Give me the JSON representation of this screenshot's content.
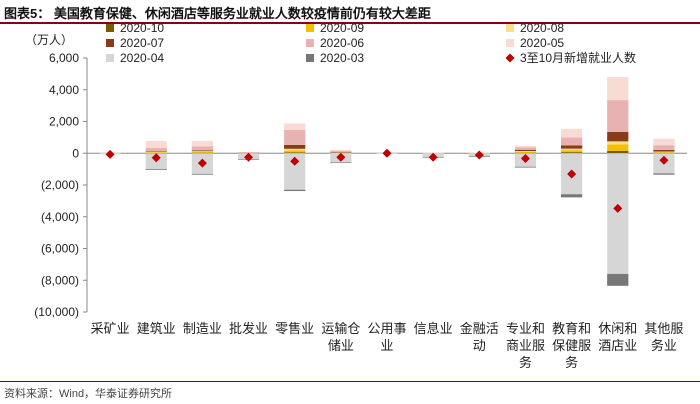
{
  "header": {
    "figure_title": "图表5：  美国教育保健、休闲酒店等服务业就业人数较疫情前仍有较大差距",
    "source": "资料来源：Wind，华泰证券研究所"
  },
  "chart_data": {
    "type": "bar",
    "stacked": true,
    "unit_label": "（万人）",
    "categories": [
      [
        "采矿业"
      ],
      [
        "建筑业"
      ],
      [
        "制造业"
      ],
      [
        "批发业"
      ],
      [
        "零售业"
      ],
      [
        "运输仓",
        "储业"
      ],
      [
        "公用事",
        "业"
      ],
      [
        "信息业"
      ],
      [
        "金融活",
        "动"
      ],
      [
        "专业和",
        "商业服",
        "务"
      ],
      [
        "教育和",
        "保健服",
        "务"
      ],
      [
        "休闲和",
        "酒店业"
      ],
      [
        "其他服",
        "务业"
      ]
    ],
    "ylim": [
      -10000,
      6000
    ],
    "yticks": [
      6000,
      4000,
      2000,
      0,
      -2000,
      -4000,
      -6000,
      -8000,
      -10000
    ],
    "ytick_labels": [
      "6,000",
      "4,000",
      "2,000",
      "0",
      "(2,000)",
      "(4,000)",
      "(6,000)",
      "(8,000)",
      "(10,000)"
    ],
    "legend_position": "top",
    "series": [
      {
        "name": "2020-10",
        "color": "#7a5a00",
        "values": [
          5,
          20,
          30,
          5,
          60,
          10,
          0,
          5,
          5,
          30,
          70,
          150,
          30
        ]
      },
      {
        "name": "2020-09",
        "color": "#f5c000",
        "values": [
          5,
          40,
          60,
          10,
          120,
          15,
          0,
          5,
          5,
          50,
          130,
          400,
          40
        ]
      },
      {
        "name": "2020-08",
        "color": "#fbe08a",
        "values": [
          5,
          30,
          40,
          10,
          100,
          15,
          0,
          5,
          5,
          60,
          90,
          200,
          40
        ]
      },
      {
        "name": "2020-07",
        "color": "#8b3a1a",
        "values": [
          0,
          40,
          50,
          10,
          250,
          20,
          0,
          5,
          5,
          80,
          200,
          600,
          100
        ]
      },
      {
        "name": "2020-06",
        "color": "#e8b2b2",
        "values": [
          5,
          200,
          250,
          30,
          950,
          80,
          5,
          10,
          10,
          150,
          500,
          2000,
          300
        ]
      },
      {
        "name": "2020-05",
        "color": "#f8dcd4",
        "values": [
          5,
          450,
          350,
          20,
          400,
          80,
          5,
          10,
          10,
          100,
          550,
          1450,
          400
        ]
      },
      {
        "name": "2020-04",
        "color": "#d6d6d6",
        "values": [
          -70,
          -1000,
          -1300,
          -380,
          -2300,
          -580,
          -10,
          -250,
          -200,
          -850,
          -2580,
          -7600,
          -1270
        ]
      },
      {
        "name": "2020-03",
        "color": "#777777",
        "values": [
          0,
          -50,
          -50,
          -20,
          -80,
          -20,
          0,
          -20,
          -20,
          -50,
          -200,
          -750,
          -80
        ]
      }
    ],
    "marker_series": {
      "name": "3至10月新增就业人数",
      "color": "#c00000",
      "values": [
        -70,
        -280,
        -620,
        -250,
        -500,
        -250,
        0,
        -250,
        -110,
        -330,
        -1310,
        -3470,
        -440
      ]
    }
  }
}
